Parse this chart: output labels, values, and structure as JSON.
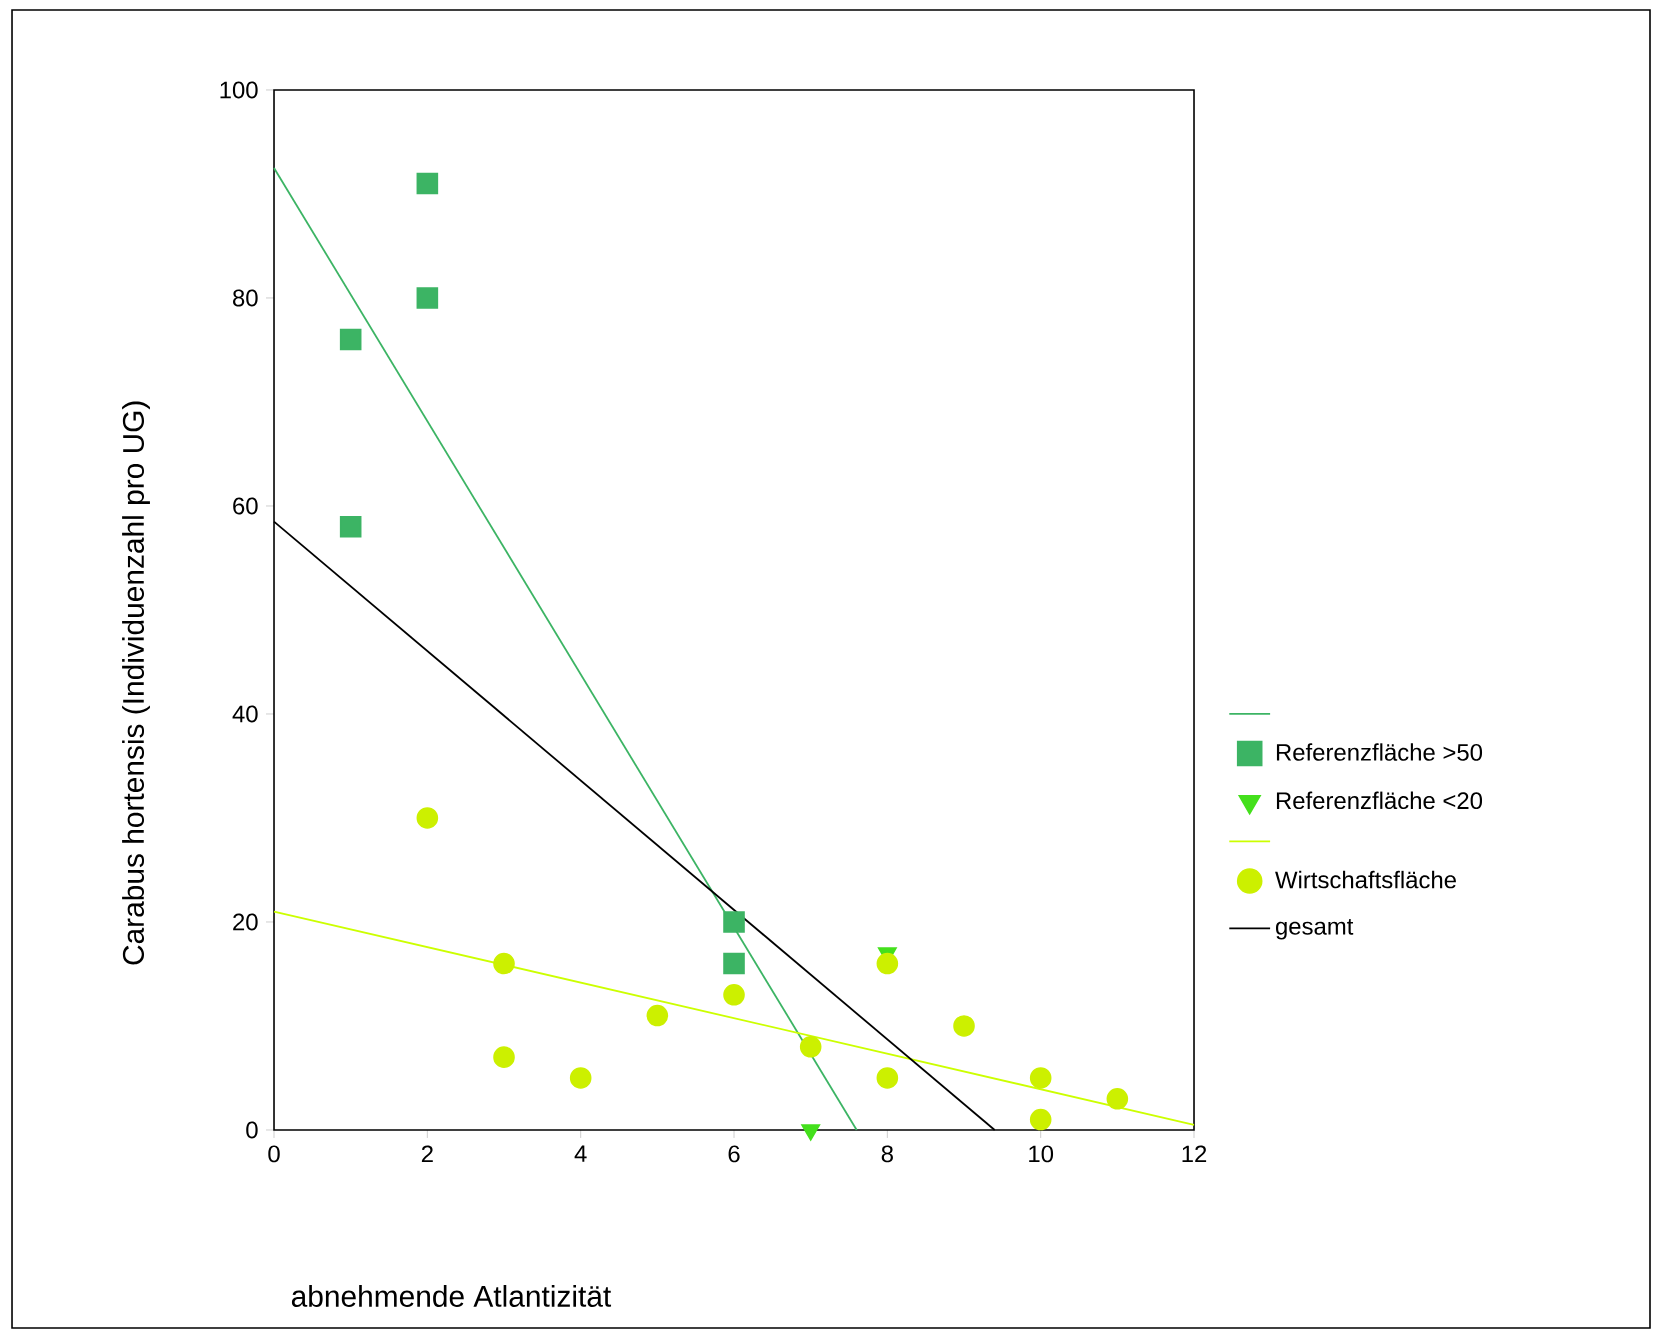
{
  "chart_data": {
    "type": "scatter",
    "xlabel": "abnehmende Atlantizität",
    "ylabel": "Carabus hortensis (Individuenzahl pro UG)",
    "xlim": [
      0,
      12
    ],
    "xticks": [
      0,
      2,
      4,
      6,
      8,
      10,
      12
    ],
    "ylim": [
      0,
      100
    ],
    "yticks": [
      0,
      20,
      40,
      60,
      80,
      100
    ],
    "grid": false,
    "legend": "right",
    "series": [
      {
        "type": "line",
        "color": "#3cb464",
        "x": [
          0,
          7.6
        ],
        "values": [
          92.5,
          0
        ],
        "marker": "none"
      },
      {
        "type": "scatter",
        "name": "Referenzfläche >50",
        "color": "#3cb464",
        "marker": "square",
        "x": [
          1,
          1,
          2,
          2,
          6,
          6
        ],
        "values": [
          76,
          58,
          91,
          80,
          20,
          16
        ]
      },
      {
        "type": "scatter",
        "name": "Referenzfläche <20",
        "color": "#44e01c",
        "marker": "triangle",
        "x": [
          7,
          8
        ],
        "values": [
          0,
          17
        ]
      },
      {
        "type": "line",
        "color": "#ccff00",
        "x": [
          0,
          12
        ],
        "values": [
          21,
          0.5
        ],
        "marker": "none"
      },
      {
        "type": "scatter",
        "name": "Wirtschaftsfläche",
        "color": "#ccf000",
        "marker": "circle",
        "x": [
          2,
          3,
          3,
          4,
          5,
          6,
          7,
          8,
          8,
          9,
          10,
          10,
          11
        ],
        "values": [
          30,
          16,
          7,
          5,
          11,
          13,
          8,
          16,
          5,
          10,
          5,
          1,
          3
        ]
      },
      {
        "type": "line",
        "name": "gesamt",
        "color": "#000000",
        "x": [
          0,
          9.4
        ],
        "values": [
          58.5,
          0
        ],
        "marker": "none"
      }
    ]
  }
}
